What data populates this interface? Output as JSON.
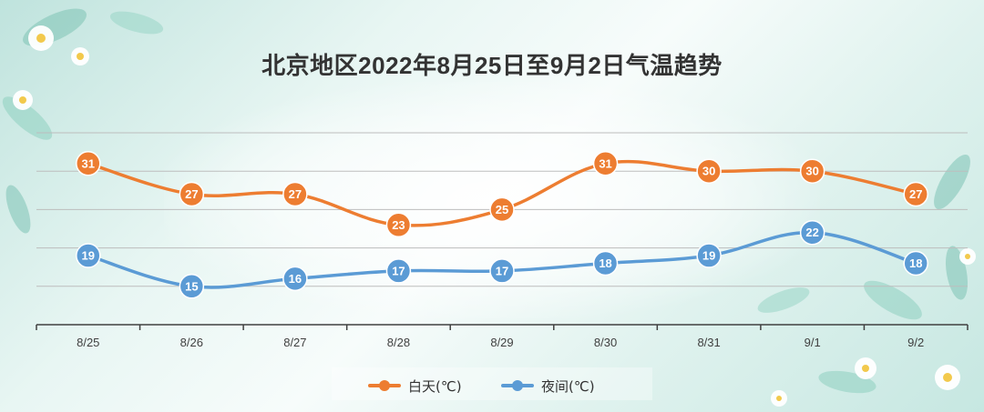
{
  "title": "北京地区2022年8月25日至9月2日气温趋势",
  "colors": {
    "day": "#ed7d31",
    "night": "#5b9bd5",
    "gridline": "#bdbdbd",
    "axis": "#404040"
  },
  "legend": {
    "day_label": "白天(℃)",
    "night_label": "夜间(℃)"
  },
  "chart_data": {
    "type": "line",
    "title": "北京地区2022年8月25日至9月2日气温趋势",
    "categories": [
      "8/25",
      "8/26",
      "8/27",
      "8/28",
      "8/29",
      "8/30",
      "8/31",
      "9/1",
      "9/2"
    ],
    "series": [
      {
        "name": "白天(℃)",
        "values": [
          31,
          27,
          27,
          23,
          25,
          31,
          30,
          30,
          27
        ]
      },
      {
        "name": "夜间(℃)",
        "values": [
          19,
          15,
          16,
          17,
          17,
          18,
          19,
          22,
          18
        ]
      }
    ],
    "smooth": true,
    "data_labels": true,
    "grid": true,
    "legend_position": "bottom",
    "xlabel": "",
    "ylabel": ""
  }
}
